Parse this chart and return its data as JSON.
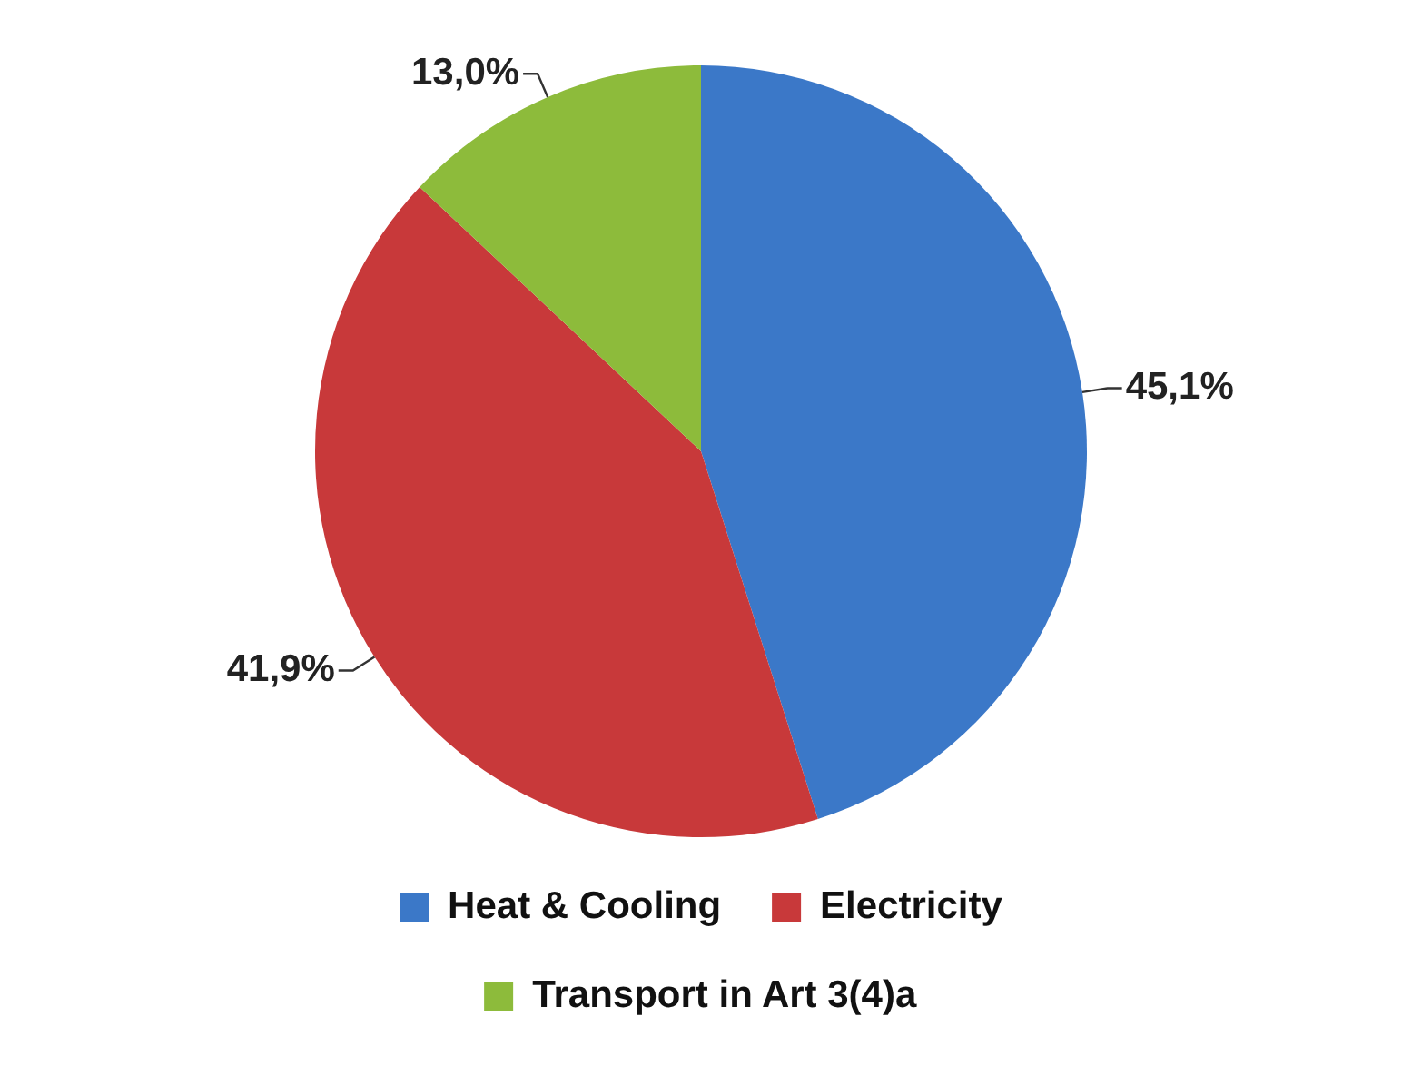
{
  "chart_data": {
    "type": "pie",
    "categories": [
      "Heat & Cooling",
      "Electricity",
      "Transport in Art 3(4)a"
    ],
    "values": [
      45.1,
      41.9,
      13.0
    ],
    "colors": [
      "#3b78c8",
      "#c8393a",
      "#8dbb3b"
    ],
    "value_labels": [
      "45,1%",
      "41,9%",
      "13,0%"
    ],
    "legend": "bottom"
  }
}
